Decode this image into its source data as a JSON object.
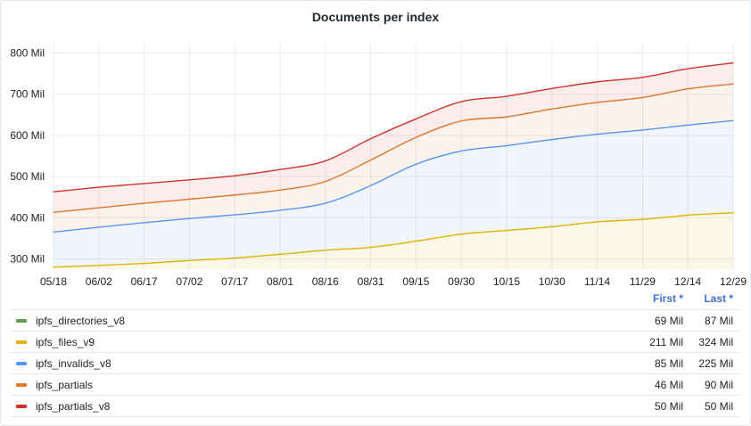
{
  "panel": {
    "title": "Documents per index"
  },
  "legend": {
    "first_header": "First *",
    "last_header": "Last *",
    "rows": [
      {
        "name": "ipfs_directories_v8",
        "first": "69 Mil",
        "last": "87 Mil",
        "color": "#629e51"
      },
      {
        "name": "ipfs_files_v9",
        "first": "211 Mil",
        "last": "324 Mil",
        "color": "#e0b400"
      },
      {
        "name": "ipfs_invalids_v8",
        "first": "85 Mil",
        "last": "225 Mil",
        "color": "#5794f2"
      },
      {
        "name": "ipfs_partials",
        "first": "46 Mil",
        "last": "90 Mil",
        "color": "#e0752d"
      },
      {
        "name": "ipfs_partials_v8",
        "first": "50 Mil",
        "last": "50 Mil",
        "color": "#d0342c"
      }
    ]
  },
  "chart_data": {
    "type": "area",
    "stacked": true,
    "title": "Documents per index",
    "unit": "Mil",
    "ylim": [
      275,
      825
    ],
    "y_ticks": [
      "300 Mil",
      "400 Mil",
      "500 Mil",
      "600 Mil",
      "700 Mil",
      "800 Mil"
    ],
    "y_tick_values": [
      300,
      400,
      500,
      600,
      700,
      800
    ],
    "x_ticks": [
      "05/18",
      "06/02",
      "06/17",
      "07/02",
      "07/17",
      "08/01",
      "08/16",
      "08/31",
      "09/15",
      "09/30",
      "10/15",
      "10/30",
      "11/14",
      "11/29",
      "12/14",
      "12/29"
    ],
    "grid": true,
    "legend_placement": "bottom",
    "series": [
      {
        "name": "ipfs_files_v9",
        "color": "#e0b400",
        "values": [
          280,
          284,
          289,
          296,
          302,
          311,
          321,
          328,
          343,
          360,
          369,
          378,
          390,
          396,
          406,
          412
        ]
      },
      {
        "name": "ipfs_invalids_v8",
        "color": "#5794f2",
        "values": [
          365,
          377,
          388,
          398,
          407,
          418,
          435,
          478,
          530,
          562,
          575,
          590,
          603,
          613,
          625,
          636
        ]
      },
      {
        "name": "ipfs_partials",
        "color": "#e0752d",
        "values": [
          413,
          424,
          435,
          445,
          455,
          467,
          488,
          540,
          595,
          635,
          645,
          664,
          680,
          692,
          713,
          725
        ]
      },
      {
        "name": "ipfs_partials_v8",
        "color": "#d0342c",
        "values": [
          463,
          474,
          483,
          492,
          502,
          517,
          538,
          592,
          640,
          682,
          695,
          714,
          730,
          741,
          762,
          776
        ]
      }
    ]
  }
}
